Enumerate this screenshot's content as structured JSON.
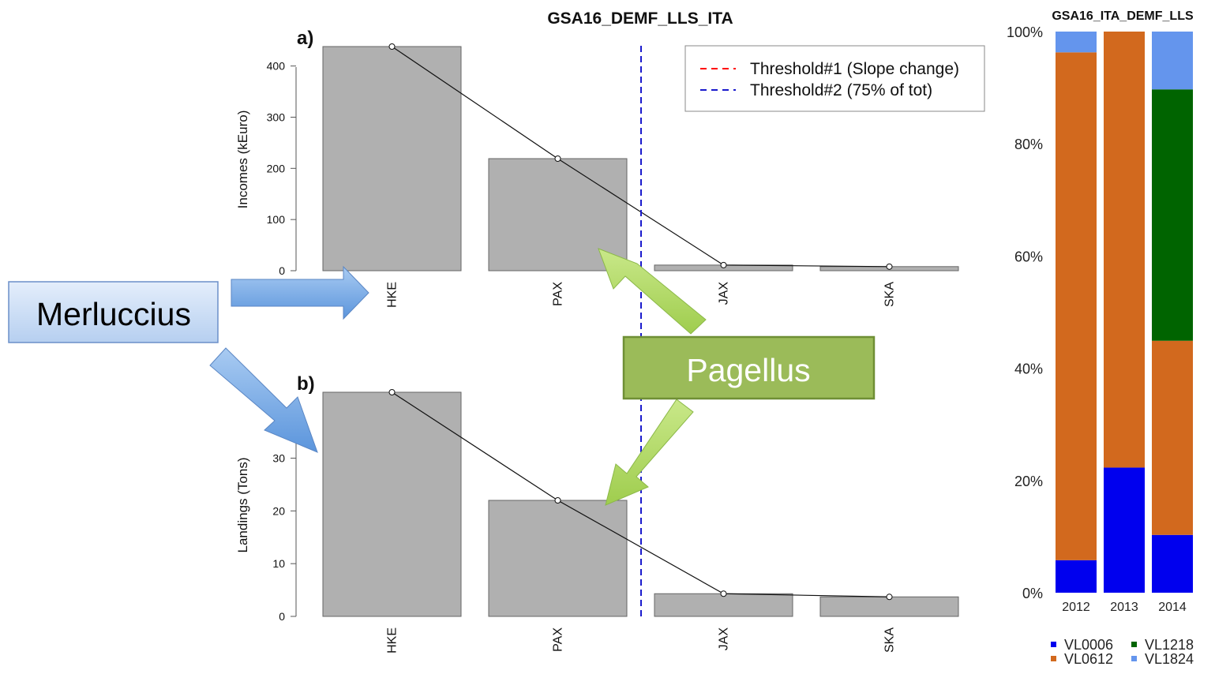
{
  "chart_data": [
    {
      "type": "bar",
      "title": "GSA16_DEMF_LLS_ITA",
      "panel": "a)",
      "ylabel": "Incomes (kEuro)",
      "xlabel": "",
      "categories": [
        "HKE",
        "PAX",
        "JAX",
        "SKA"
      ],
      "values": [
        438,
        219,
        11,
        8
      ],
      "line_overlay": [
        438,
        219,
        11,
        8
      ],
      "ylim": [
        0,
        438
      ],
      "yticks": [
        0,
        100,
        200,
        300,
        400
      ],
      "threshold_after_category": "PAX",
      "legend": {
        "placement": "top-right",
        "entries": [
          {
            "label": "Threshold#1 (Slope change)",
            "color": "#ff0000"
          },
          {
            "label": "Threshold#2 (75% of tot)",
            "color": "#0000ff"
          }
        ]
      },
      "bar_color": "#b0b0b0"
    },
    {
      "type": "bar",
      "panel": "b)",
      "ylabel": "Landings (Tons)",
      "xlabel": "",
      "categories": [
        "HKE",
        "PAX",
        "JAX",
        "SKA"
      ],
      "values": [
        42.5,
        22,
        4.3,
        3.7
      ],
      "line_overlay": [
        42.5,
        22,
        4.3,
        3.7
      ],
      "ylim": [
        0,
        42.5
      ],
      "yticks": [
        0,
        10,
        20,
        30
      ],
      "threshold_after_category": "PAX",
      "bar_color": "#b0b0b0"
    },
    {
      "type": "bar",
      "stacked": true,
      "percent": true,
      "title": "GSA16_ITA_DEMF_LLS",
      "categories": [
        "2012",
        "2013",
        "2014"
      ],
      "yticks": [
        "0%",
        "20%",
        "40%",
        "60%",
        "80%",
        "100%"
      ],
      "ylim": [
        0,
        100
      ],
      "series": [
        {
          "name": "VL0006",
          "color": "#0000ee",
          "values": [
            5.8,
            22.3,
            10.3
          ]
        },
        {
          "name": "VL0612",
          "color": "#d2691e",
          "values": [
            90.5,
            77.7,
            34.6
          ]
        },
        {
          "name": "VL1218",
          "color": "#006400",
          "values": [
            0,
            0,
            44.8
          ]
        },
        {
          "name": "VL1824",
          "color": "#6495ed",
          "values": [
            3.7,
            0,
            10.3
          ]
        }
      ],
      "legend": {
        "placement": "bottom"
      }
    }
  ],
  "annotations": {
    "merluccius_label": "Merluccius",
    "pagellus_label": "Pagellus"
  }
}
